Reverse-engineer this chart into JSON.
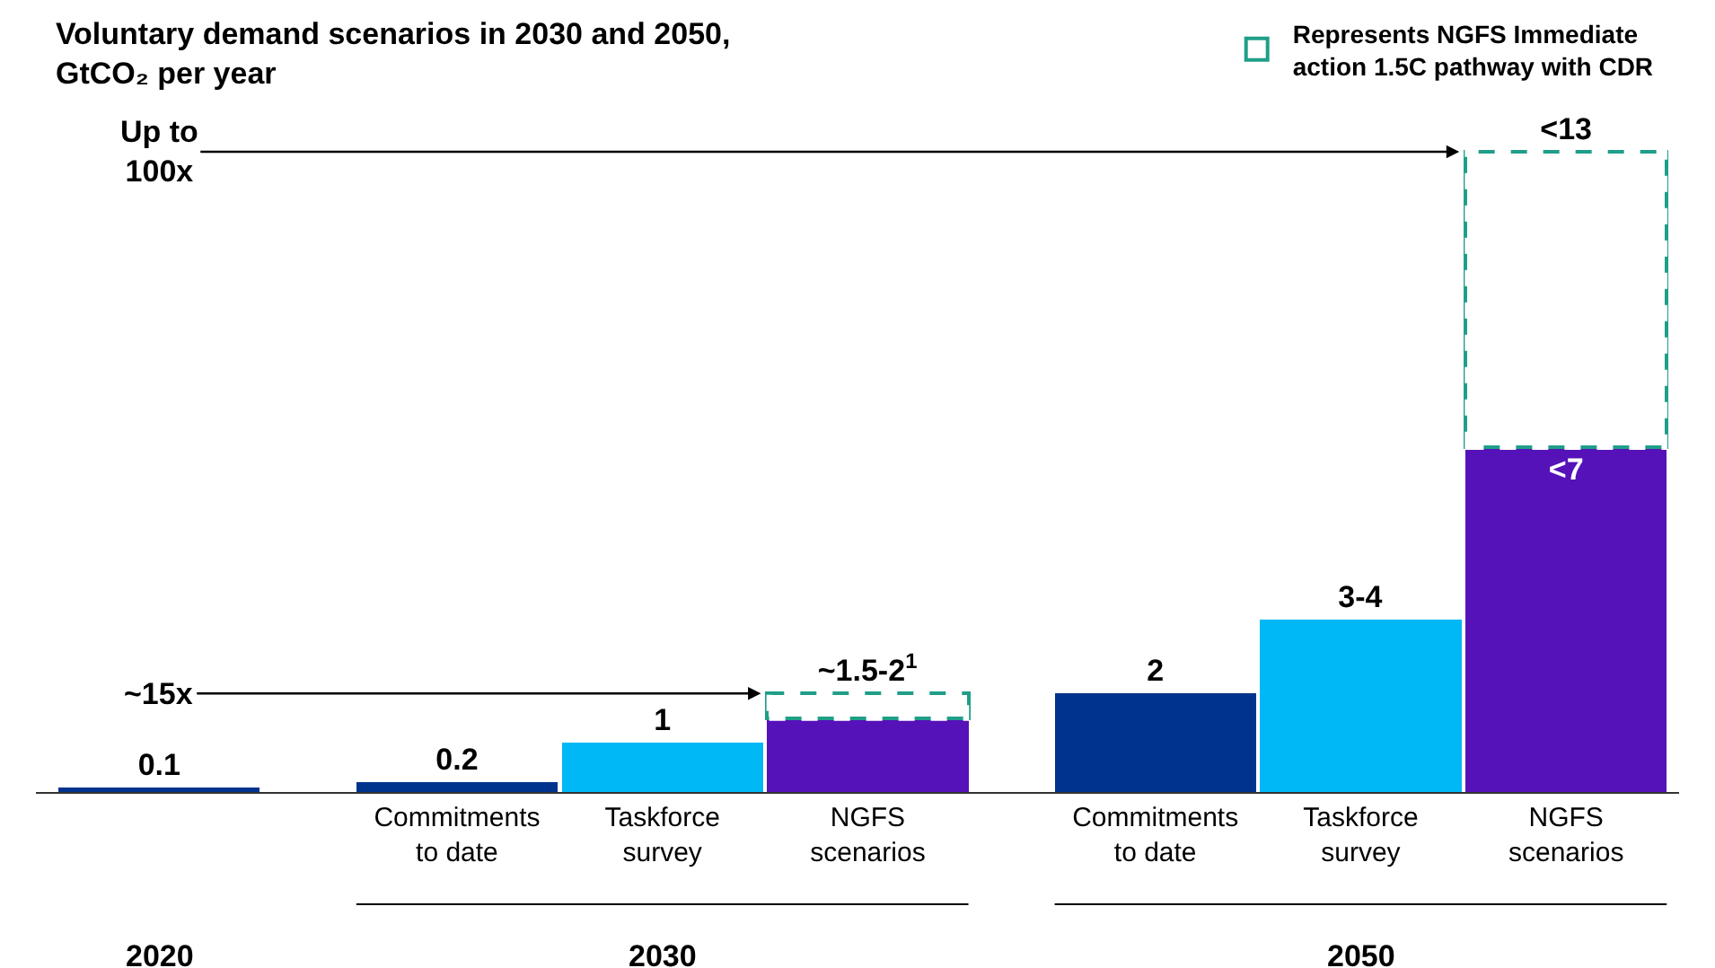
{
  "chart_data": {
    "type": "bar",
    "stacked": true,
    "title": "Voluntary demand scenarios in 2030 and 2050, GtCO₂ per year",
    "categories": [
      null,
      "Commitments to date",
      "Taskforce survey",
      "NGFS scenarios",
      "Commitments to date",
      "Taskforce survey",
      "NGFS scenarios"
    ],
    "series": [
      {
        "colors": [
          "#00338d",
          "#00338d",
          "#00b8f5",
          "#5512b9",
          "#00338d",
          "#00b8f5",
          "#5512b9"
        ],
        "values": [
          0.1,
          0.2,
          1,
          1.5,
          2,
          3.5,
          7
        ],
        "value_labels": [
          "0.1",
          "0.2",
          "1",
          null,
          "2",
          "3-4",
          "<7"
        ]
      },
      {
        "name": "Represents NGFS Immediate action 1.5C pathway with CDR",
        "color": "#1f9e89",
        "line_style": "dashed",
        "values": [
          null,
          null,
          null,
          0.5,
          null,
          null,
          6
        ],
        "value_labels": [
          null,
          null,
          null,
          "~1.5-2$^{1}$",
          null,
          null,
          "<13"
        ]
      }
    ],
    "legend": "top right",
    "grid": false,
    "annotations": [
      {
        "text": "~15x",
        "y": 2
      },
      "Up to 100x",
      "2020",
      "2030",
      "2050"
    ]
  }
}
